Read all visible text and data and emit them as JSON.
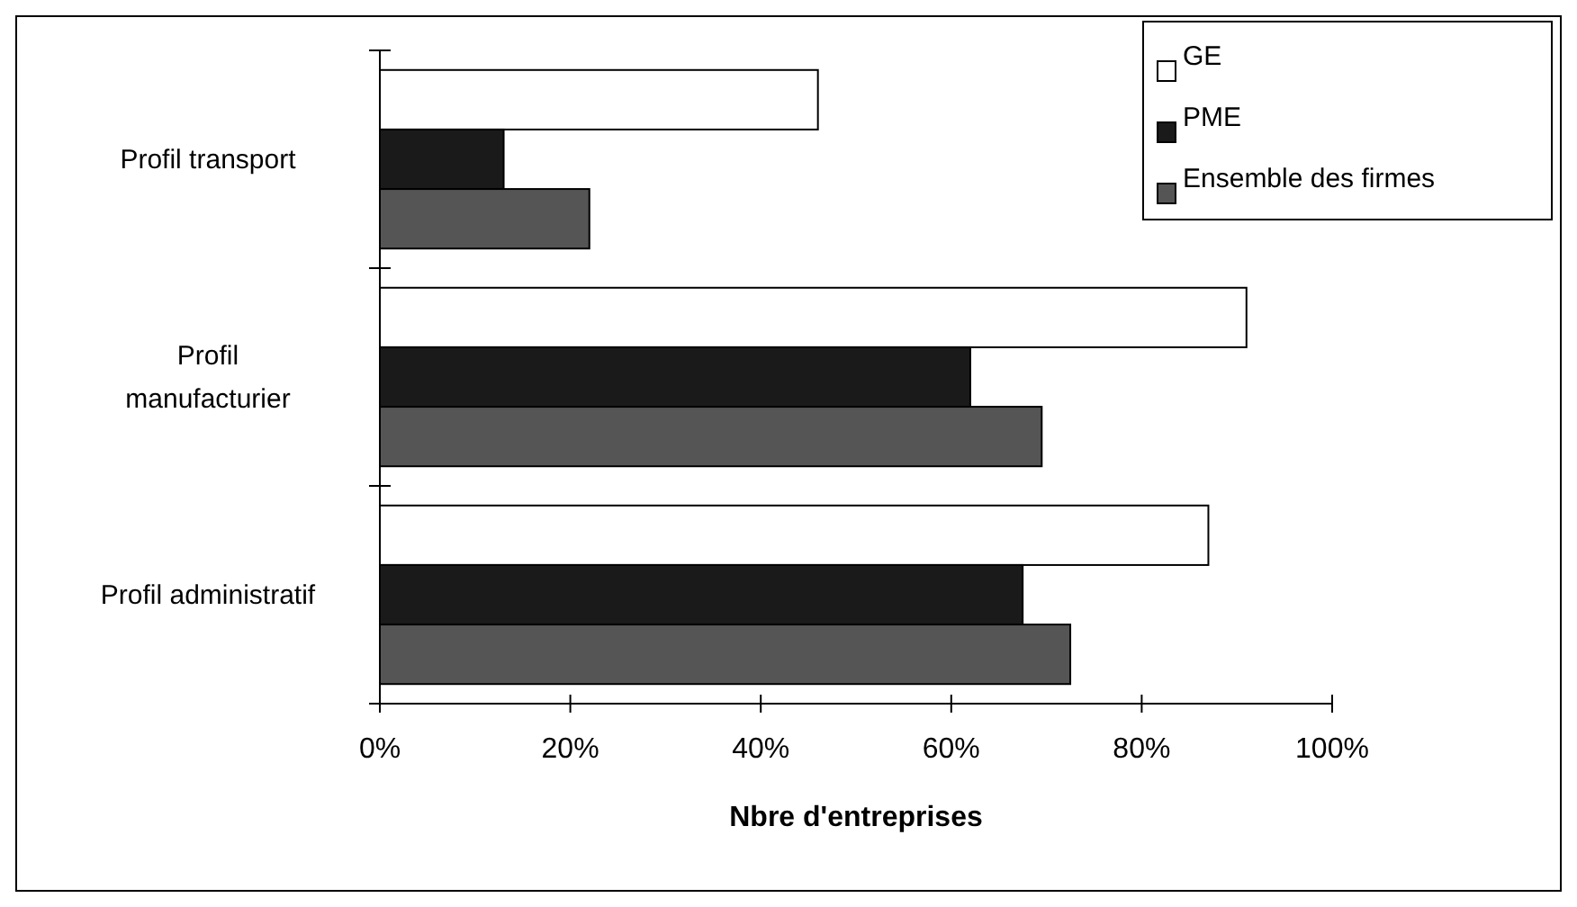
{
  "chart_data": {
    "type": "bar",
    "orientation": "horizontal",
    "xlabel": "Nbre d'entreprises",
    "categories": [
      "Profil transport",
      "Profil\nmanufacturier",
      "Profil administratif"
    ],
    "series": [
      {
        "name": "GE",
        "color": "#ffffff",
        "values": [
          46,
          91,
          87
        ]
      },
      {
        "name": "PME",
        "color": "#1a1a1a",
        "values": [
          13,
          62,
          67.5
        ]
      },
      {
        "name": "Ensemble des firmes",
        "color": "#555555",
        "values": [
          22,
          69.5,
          72.5
        ]
      }
    ],
    "xlim": [
      0,
      100
    ],
    "xticks": [
      {
        "value": 0,
        "label": "0%"
      },
      {
        "value": 20,
        "label": "20%"
      },
      {
        "value": 40,
        "label": "40%"
      },
      {
        "value": 60,
        "label": "60%"
      },
      {
        "value": 80,
        "label": "80%"
      },
      {
        "value": 100,
        "label": "100%"
      }
    ],
    "legend": "top right",
    "grid": false
  }
}
